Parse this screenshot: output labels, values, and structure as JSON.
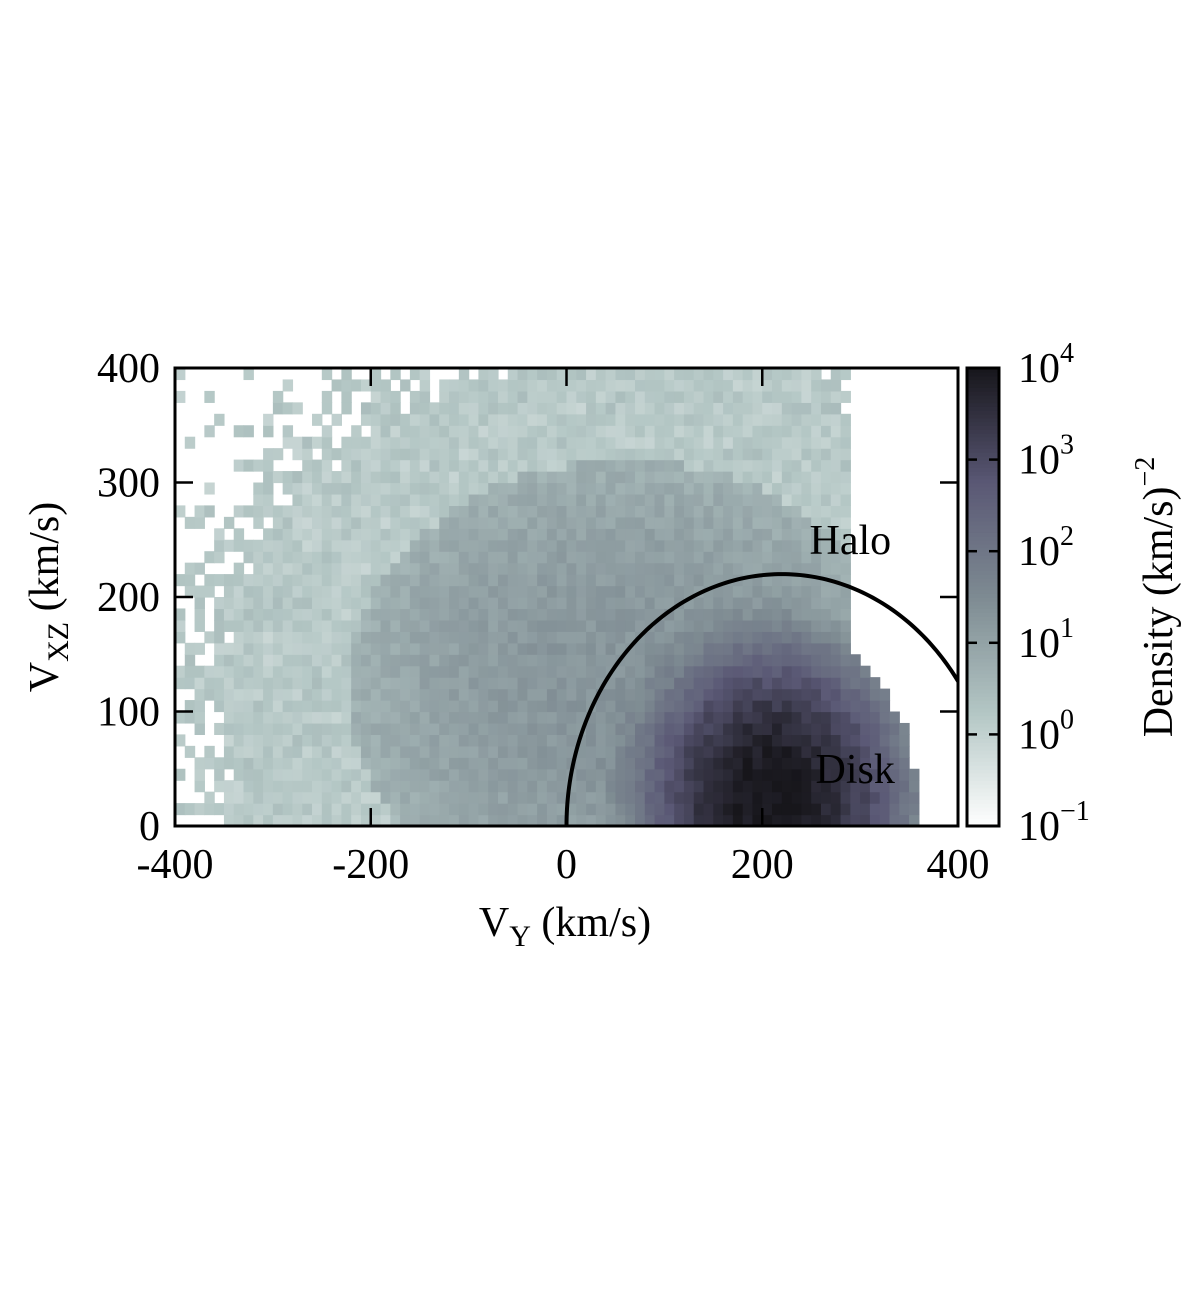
{
  "chart_data": {
    "type": "heatmap",
    "title": "",
    "xlabel": {
      "main": "V",
      "sub": "Y",
      "unit": " (km/s)"
    },
    "ylabel": {
      "main": "V",
      "sub": "XZ",
      "unit": " (km/s)"
    },
    "xlim": [
      -400,
      400
    ],
    "ylim": [
      0,
      400
    ],
    "x_ticks": [
      {
        "value": -400,
        "label": "-400"
      },
      {
        "value": -200,
        "label": "-200"
      },
      {
        "value": 0,
        "label": "0"
      },
      {
        "value": 200,
        "label": "200"
      },
      {
        "value": 400,
        "label": "400"
      }
    ],
    "y_ticks": [
      {
        "value": 0,
        "label": "0"
      },
      {
        "value": 100,
        "label": "100"
      },
      {
        "value": 200,
        "label": "200"
      },
      {
        "value": 300,
        "label": "300"
      },
      {
        "value": 400,
        "label": "400"
      }
    ],
    "bin_size": 10,
    "density_model": {
      "disk": {
        "center_vy": 210,
        "center_vxz": 25,
        "sigma_vy": 45,
        "sigma_vxz": 45,
        "peak_log10": 4
      },
      "halo": {
        "center_vy": 60,
        "center_vxz": 120,
        "sigma_vy": 170,
        "sigma_vxz": 120,
        "peak_log10": 1.3
      }
    },
    "boundary_curve": {
      "center_vy": 220,
      "center_vxz": 0,
      "radius": 220,
      "color": "#000000"
    },
    "annotations": [
      {
        "text": "Halo",
        "vy": 290,
        "vxz": 250
      },
      {
        "text": "Disk",
        "vy": 295,
        "vxz": 50
      }
    ],
    "colorbar": {
      "label": {
        "main": "Density (km/s)",
        "sup": "−2"
      },
      "scale": "log",
      "range": [
        -1,
        4
      ],
      "ticks": [
        {
          "value": -1,
          "base": "10",
          "exp": "−1"
        },
        {
          "value": 0,
          "base": "10",
          "exp": "0"
        },
        {
          "value": 1,
          "base": "10",
          "exp": "1"
        },
        {
          "value": 2,
          "base": "10",
          "exp": "2"
        },
        {
          "value": 3,
          "base": "10",
          "exp": "3"
        },
        {
          "value": 4,
          "base": "10",
          "exp": "4"
        }
      ],
      "colors": [
        "#ffffff",
        "#b3c6c4",
        "#7e8b92",
        "#5a5875",
        "#17161b"
      ]
    }
  }
}
